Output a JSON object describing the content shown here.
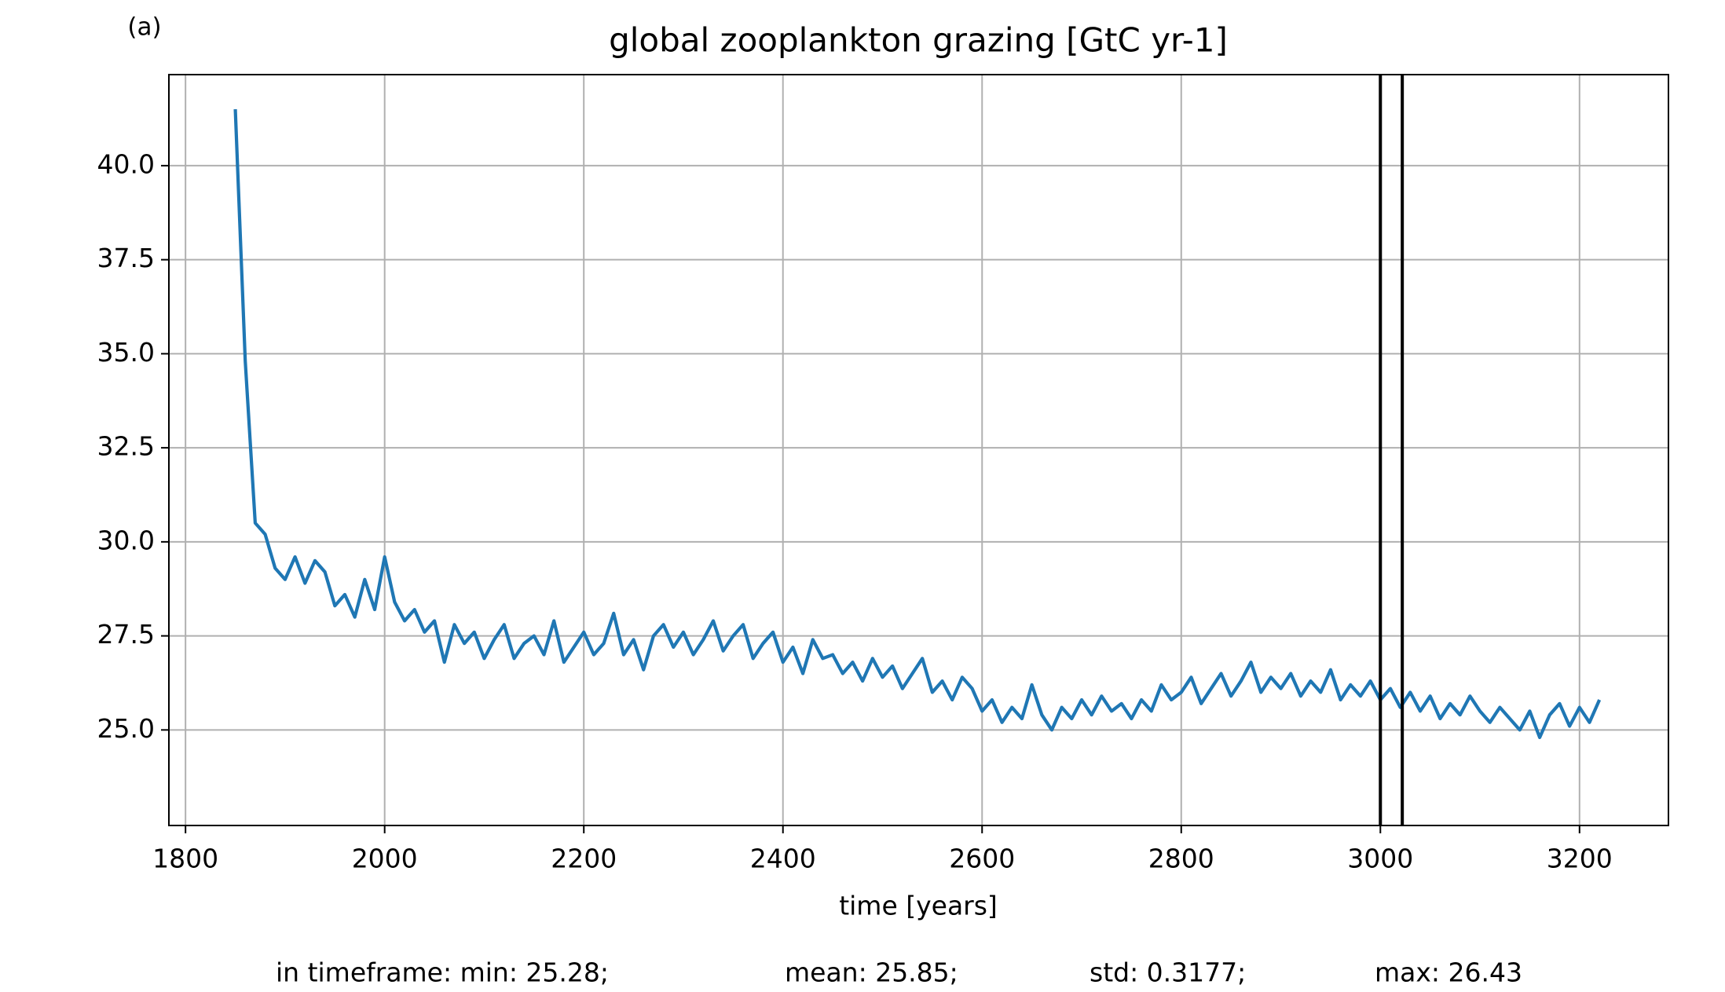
{
  "chart_data": {
    "type": "line",
    "panel_label": "(a)",
    "title": "global zooplankton grazing [GtC yr-1]",
    "xlabel": "time [years]",
    "stats": [
      "in timeframe: min: 25.28;",
      "mean: 25.85;",
      "std: 0.3177;",
      "max: 26.43"
    ],
    "x": [
      1850,
      1860,
      1870,
      1880,
      1890,
      1900,
      1910,
      1920,
      1930,
      1940,
      1950,
      1960,
      1970,
      1980,
      1990,
      2000,
      2010,
      2020,
      2030,
      2040,
      2050,
      2060,
      2070,
      2080,
      2090,
      2100,
      2110,
      2120,
      2130,
      2140,
      2150,
      2160,
      2170,
      2180,
      2190,
      2200,
      2210,
      2220,
      2230,
      2240,
      2250,
      2260,
      2270,
      2280,
      2290,
      2300,
      2310,
      2320,
      2330,
      2340,
      2350,
      2360,
      2370,
      2380,
      2390,
      2400,
      2410,
      2420,
      2430,
      2440,
      2450,
      2460,
      2470,
      2480,
      2490,
      2500,
      2510,
      2520,
      2530,
      2540,
      2550,
      2560,
      2570,
      2580,
      2590,
      2600,
      2610,
      2620,
      2630,
      2640,
      2650,
      2660,
      2670,
      2680,
      2690,
      2700,
      2710,
      2720,
      2730,
      2740,
      2750,
      2760,
      2770,
      2780,
      2790,
      2800,
      2810,
      2820,
      2830,
      2840,
      2850,
      2860,
      2870,
      2880,
      2890,
      2900,
      2910,
      2920,
      2930,
      2940,
      2950,
      2960,
      2970,
      2980,
      2990,
      3000,
      3010,
      3020,
      3030,
      3040,
      3050,
      3060,
      3070,
      3080,
      3090,
      3100,
      3110,
      3120,
      3130,
      3140,
      3150,
      3160,
      3170,
      3180,
      3190,
      3200,
      3210,
      3220
    ],
    "series": [
      {
        "color": "#1f77b4",
        "values": [
          41.5,
          34.8,
          30.5,
          30.2,
          29.3,
          29.0,
          29.6,
          28.9,
          29.5,
          29.2,
          28.3,
          28.6,
          28.0,
          29.0,
          28.2,
          29.6,
          28.4,
          27.9,
          28.2,
          27.6,
          27.9,
          26.8,
          27.8,
          27.3,
          27.6,
          26.9,
          27.4,
          27.8,
          26.9,
          27.3,
          27.5,
          27.0,
          27.9,
          26.8,
          27.2,
          27.6,
          27.0,
          27.3,
          28.1,
          27.0,
          27.4,
          26.6,
          27.5,
          27.8,
          27.2,
          27.6,
          27.0,
          27.4,
          27.9,
          27.1,
          27.5,
          27.8,
          26.9,
          27.3,
          27.6,
          26.8,
          27.2,
          26.5,
          27.4,
          26.9,
          27.0,
          26.5,
          26.8,
          26.3,
          26.9,
          26.4,
          26.7,
          26.1,
          26.5,
          26.9,
          26.0,
          26.3,
          25.8,
          26.4,
          26.1,
          25.5,
          25.8,
          25.2,
          25.6,
          25.3,
          26.2,
          25.4,
          25.0,
          25.6,
          25.3,
          25.8,
          25.4,
          25.9,
          25.5,
          25.7,
          25.3,
          25.8,
          25.5,
          26.2,
          25.8,
          26.0,
          26.4,
          25.7,
          26.1,
          26.5,
          25.9,
          26.3,
          26.8,
          26.0,
          26.4,
          26.1,
          26.5,
          25.9,
          26.3,
          26.0,
          26.6,
          25.8,
          26.2,
          25.9,
          26.3,
          25.8,
          26.1,
          25.6,
          26.0,
          25.5,
          25.9,
          25.3,
          25.7,
          25.4,
          25.9,
          25.5,
          25.2,
          25.6,
          25.3,
          25.0,
          25.5,
          24.8,
          25.4,
          25.7,
          25.1,
          25.6,
          25.2,
          25.8
        ]
      }
    ],
    "vlines": [
      3000,
      3022
    ],
    "vline_color": "#000000",
    "xlim": [
      1783.3,
      3289.3
    ],
    "ylim": [
      22.46,
      42.42
    ],
    "xticks": [
      1800,
      2000,
      2200,
      2400,
      2600,
      2800,
      3000,
      3200
    ],
    "yticks": [
      {
        "value": 25,
        "label": "25.0"
      },
      {
        "value": 27.5,
        "label": "27.5"
      },
      {
        "value": 30,
        "label": "30.0"
      },
      {
        "value": 32.5,
        "label": "32.5"
      },
      {
        "value": 35,
        "label": "35.0"
      },
      {
        "value": 37.5,
        "label": "37.5"
      },
      {
        "value": 40,
        "label": "40.0"
      }
    ],
    "grid": true
  }
}
